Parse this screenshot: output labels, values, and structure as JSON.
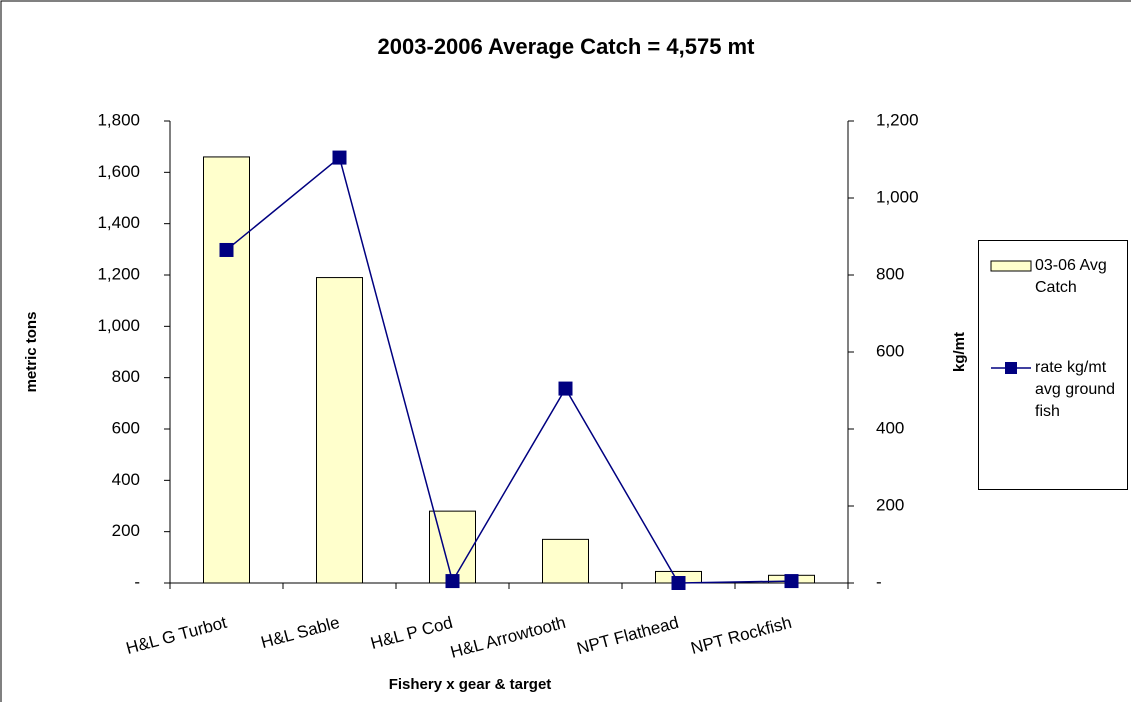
{
  "chart_data": {
    "type": "bar-line",
    "title": "2003-2006 Average Catch = 4,575 mt",
    "xlabel": "Fishery x gear & target",
    "ylabel": "metric tons",
    "y2label": "kg/mt",
    "categories": [
      "H&L G Turbot",
      "H&L Sable",
      "H&L P Cod",
      "H&L Arrowtooth",
      "NPT Flathead",
      "NPT Rockfish"
    ],
    "series": [
      {
        "name": "03-06 Avg Catch",
        "type": "bar",
        "color": "#ffffcc",
        "values": [
          1660,
          1190,
          280,
          170,
          45,
          30
        ]
      },
      {
        "name": "rate kg/mt avg ground fish",
        "type": "line",
        "axis": "y2",
        "color": "#000080",
        "values": [
          865,
          1105,
          5,
          505,
          0,
          5
        ]
      }
    ],
    "ylim": [
      0,
      1800
    ],
    "yticks": [
      {
        "value": 0,
        "label": "-"
      },
      200,
      400,
      600,
      800,
      {
        "value": 1000,
        "label": "1,000"
      },
      {
        "value": 1200,
        "label": "1,200"
      },
      {
        "value": 1400,
        "label": "1,400"
      },
      {
        "value": 1600,
        "label": "1,600"
      },
      {
        "value": 1800,
        "label": "1,800"
      }
    ],
    "y2lim": [
      0,
      1200
    ],
    "y2ticks": [
      {
        "value": 0,
        "label": "-"
      },
      200,
      400,
      600,
      800,
      {
        "value": 1000,
        "label": "1,000"
      },
      {
        "value": 1200,
        "label": "1,200"
      }
    ],
    "grid": false
  }
}
